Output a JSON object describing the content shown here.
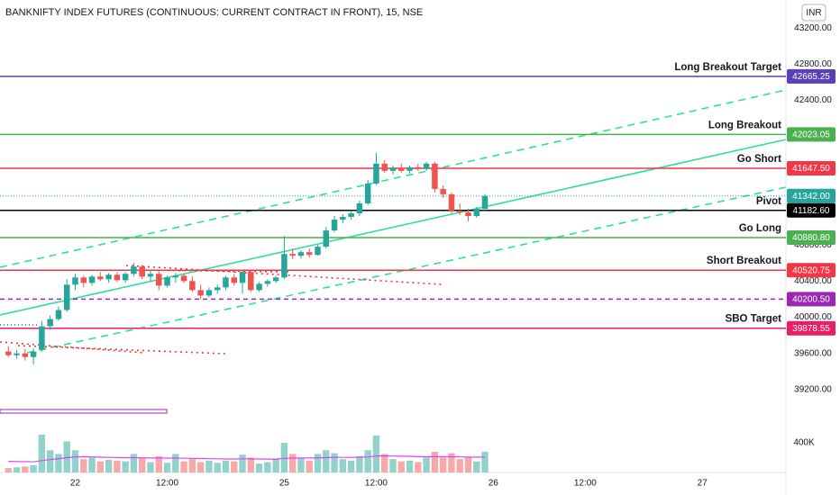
{
  "chart_data": {
    "type": "candlestick",
    "title": "BANKNIFTY INDEX FUTURES (CONTINUOUS: CURRENT CONTRACT IN FRONT), 15, NSE",
    "currency": "INR",
    "up_color": "#26a69a",
    "down_color": "#ef5350",
    "volume_up_color": "#92d2cc",
    "volume_down_color": "#f7a9a7",
    "volume_ma_color": "#e040fb",
    "xlim": [
      -9,
      85
    ],
    "xticks": [
      {
        "value": 0,
        "label": "22"
      },
      {
        "value": 11,
        "label": "12:00"
      },
      {
        "value": 25,
        "label": "25"
      },
      {
        "value": 36,
        "label": "12:00"
      },
      {
        "value": 50,
        "label": "26"
      },
      {
        "value": 61,
        "label": "12:00"
      },
      {
        "value": 75,
        "label": "27"
      }
    ],
    "ylim": [
      38830,
      43510
    ],
    "yticks": [
      {
        "value": 43200,
        "label": "43200.00"
      },
      {
        "value": 42800,
        "label": "42800.00"
      },
      {
        "value": 42400,
        "label": "42400.00"
      },
      {
        "value": 40800,
        "label": "40800.00"
      },
      {
        "value": 40400,
        "label": "40400.00"
      },
      {
        "value": 40000,
        "label": "40000.00"
      },
      {
        "value": 39600,
        "label": "39600.00"
      },
      {
        "value": 39200,
        "label": "39200.00"
      }
    ],
    "y2lim": [
      0,
      667000
    ],
    "y2ticks": [
      {
        "value": 400000,
        "label": "400K"
      }
    ],
    "x": [
      -8,
      -7,
      -6,
      -5,
      -4,
      -3,
      -2,
      -1,
      0,
      1,
      2,
      3,
      4,
      5,
      6,
      7,
      8,
      9,
      10,
      11,
      12,
      13,
      14,
      15,
      16,
      17,
      18,
      19,
      20,
      21,
      22,
      23,
      24,
      25,
      26,
      27,
      28,
      29,
      30,
      31,
      32,
      33,
      34,
      35,
      36,
      37,
      38,
      39,
      40,
      41,
      42,
      43,
      44,
      45,
      46,
      47,
      48,
      49
    ],
    "open": [
      39620,
      39580,
      39600,
      39560,
      39640,
      39900,
      39980,
      40080,
      40360,
      40440,
      40380,
      40450,
      40420,
      40470,
      40410,
      40480,
      40560,
      40450,
      40480,
      40350,
      40440,
      40460,
      40400,
      40300,
      40240,
      40300,
      40330,
      40440,
      40380,
      40500,
      40300,
      40370,
      40400,
      40440,
      40700,
      40680,
      40720,
      40690,
      40780,
      40960,
      41080,
      41110,
      41150,
      41260,
      41480,
      41700,
      41620,
      41650,
      41620,
      41660,
      41640,
      41700,
      41420,
      41360,
      41180,
      41160,
      41120,
      41200
    ],
    "high": [
      39680,
      39640,
      39650,
      39660,
      39960,
      40020,
      40120,
      40420,
      40480,
      40460,
      40470,
      40500,
      40490,
      40500,
      40500,
      40600,
      40580,
      40520,
      40510,
      40460,
      40490,
      40480,
      40450,
      40360,
      40330,
      40360,
      40460,
      40480,
      40520,
      40510,
      40390,
      40420,
      40460,
      40900,
      40760,
      40740,
      40760,
      40800,
      41000,
      41120,
      41140,
      41180,
      41290,
      41520,
      41820,
      41740,
      41680,
      41700,
      41680,
      41700,
      41720,
      41720,
      41460,
      41380,
      41260,
      41200,
      41220,
      41360
    ],
    "low": [
      39560,
      39540,
      39520,
      39480,
      39620,
      39860,
      39960,
      40060,
      40300,
      40330,
      40350,
      40400,
      40380,
      40390,
      40380,
      40450,
      40420,
      40400,
      40300,
      40330,
      40380,
      40380,
      40280,
      40200,
      40220,
      40260,
      40300,
      40350,
      40260,
      40280,
      40280,
      40340,
      40380,
      40420,
      40640,
      40650,
      40660,
      40680,
      40760,
      40940,
      41040,
      41080,
      41120,
      41240,
      41460,
      41600,
      41580,
      41600,
      41590,
      41620,
      41620,
      41380,
      41320,
      41150,
      41130,
      41060,
      41100,
      41180
    ],
    "close": [
      39580,
      39600,
      39560,
      39620,
      39900,
      39980,
      40080,
      40360,
      40440,
      40380,
      40450,
      40420,
      40470,
      40410,
      40480,
      40560,
      40450,
      40480,
      40350,
      40440,
      40460,
      40400,
      40300,
      40240,
      40300,
      40330,
      40440,
      40380,
      40500,
      40300,
      40370,
      40400,
      40440,
      40700,
      40680,
      40720,
      40690,
      40780,
      40960,
      41080,
      41110,
      41150,
      41260,
      41480,
      41700,
      41620,
      41650,
      41620,
      41660,
      41640,
      41700,
      41420,
      41360,
      41180,
      41160,
      41120,
      41200,
      41342
    ],
    "volume": [
      60000,
      70000,
      80000,
      100000,
      510000,
      300000,
      250000,
      420000,
      300000,
      180000,
      200000,
      150000,
      170000,
      160000,
      150000,
      250000,
      200000,
      140000,
      220000,
      130000,
      250000,
      150000,
      180000,
      140000,
      160000,
      130000,
      160000,
      150000,
      240000,
      200000,
      120000,
      140000,
      180000,
      400000,
      250000,
      200000,
      160000,
      250000,
      300000,
      260000,
      180000,
      160000,
      220000,
      300000,
      500000,
      250000,
      180000,
      150000,
      160000,
      140000,
      200000,
      280000,
      200000,
      260000,
      180000,
      200000,
      150000,
      280000
    ],
    "volume_ma": [
      150000,
      148000,
      146000,
      145000,
      160000,
      175000,
      185000,
      200000,
      210000,
      212000,
      210000,
      206000,
      204000,
      202000,
      200000,
      200000,
      198000,
      196000,
      196000,
      194000,
      194000,
      192000,
      190000,
      188000,
      186000,
      184000,
      182000,
      182000,
      184000,
      184000,
      182000,
      180000,
      180000,
      190000,
      194000,
      196000,
      196000,
      198000,
      200000,
      204000,
      204000,
      204000,
      206000,
      210000,
      222000,
      224000,
      222000,
      220000,
      218000,
      214000,
      212000,
      214000,
      212000,
      212000,
      210000,
      208000,
      206000,
      210000
    ],
    "last_price": {
      "value": 41342,
      "label": "41342.00",
      "color": "#26a69a"
    },
    "levels": [
      {
        "name": "Long Breakout Target",
        "value": 42665.25,
        "value_label": "42665.25",
        "color": "#5b3fb8",
        "style": "solid"
      },
      {
        "name": "Long Breakout",
        "value": 42023.05,
        "value_label": "42023.05",
        "color": "#4caf50",
        "style": "solid"
      },
      {
        "name": "Go Short",
        "value": 41647.5,
        "value_label": "41647.50",
        "color": "#f23645",
        "style": "solid"
      },
      {
        "name": "Pivot",
        "value": 41182.6,
        "value_label": "41182.60",
        "color": "#000000",
        "style": "solid"
      },
      {
        "name": "Go Long",
        "value": 40880.8,
        "value_label": "40880.80",
        "color": "#4caf50",
        "style": "solid"
      },
      {
        "name": "Short Breakout",
        "value": 40520.75,
        "value_label": "40520.75",
        "color": "#f23645",
        "style": "solid"
      },
      {
        "value": 40200.5,
        "value_label": "40200.50",
        "color": "#9c27b0",
        "style": "dashed"
      },
      {
        "name": "SBO Target",
        "value": 39878.55,
        "value_label": "39878.55",
        "color": "#e91e63",
        "style": "solid"
      }
    ]
  }
}
